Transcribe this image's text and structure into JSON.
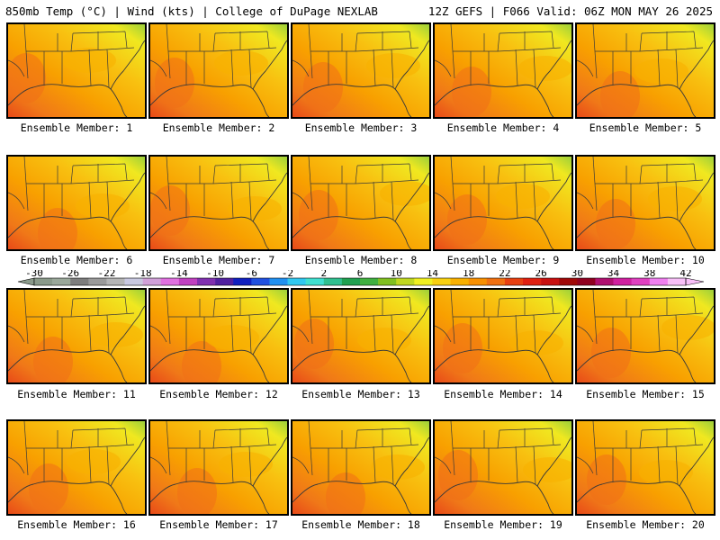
{
  "header": {
    "left": "850mb Temp (°C) | Wind (kts) | College of DuPage NEXLAB",
    "right": "12Z GEFS | F066 Valid: 06Z MON MAY 26 2025"
  },
  "members": [
    "Ensemble Member: 1",
    "Ensemble Member: 2",
    "Ensemble Member: 3",
    "Ensemble Member: 4",
    "Ensemble Member: 5",
    "Ensemble Member: 6",
    "Ensemble Member: 7",
    "Ensemble Member: 8",
    "Ensemble Member: 9",
    "Ensemble Member: 10",
    "Ensemble Member: 11",
    "Ensemble Member: 12",
    "Ensemble Member: 13",
    "Ensemble Member: 14",
    "Ensemble Member: 15",
    "Ensemble Member: 16",
    "Ensemble Member: 17",
    "Ensemble Member: 18",
    "Ensemble Member: 19",
    "Ensemble Member: 20"
  ],
  "colorbar": {
    "tick_labels": [
      "-30",
      "-26",
      "-22",
      "-18",
      "-14",
      "-10",
      "-6",
      "-2",
      "2",
      "6",
      "10",
      "14",
      "18",
      "22",
      "26",
      "30",
      "34",
      "38",
      "42"
    ],
    "colors": [
      "#8a9a8a",
      "#9aa89a",
      "#7d7d7d",
      "#9a9a9a",
      "#b5b5b5",
      "#c8c8e0",
      "#d0a0d8",
      "#e070e0",
      "#c040c0",
      "#8030b0",
      "#5020a0",
      "#1020c0",
      "#2050e0",
      "#2090f0",
      "#30c8f0",
      "#40e0d0",
      "#30c090",
      "#20a050",
      "#40b040",
      "#80c020",
      "#c0d820",
      "#f0f020",
      "#f8d010",
      "#f8b000",
      "#f89000",
      "#f07010",
      "#e84010",
      "#e02010",
      "#c81010",
      "#a00808",
      "#900020",
      "#b01070",
      "#d020a0",
      "#e040c0",
      "#f080f0",
      "#f8c0f8"
    ]
  },
  "colors": {
    "border": "#000000",
    "land_line": "#3a3a3a"
  }
}
